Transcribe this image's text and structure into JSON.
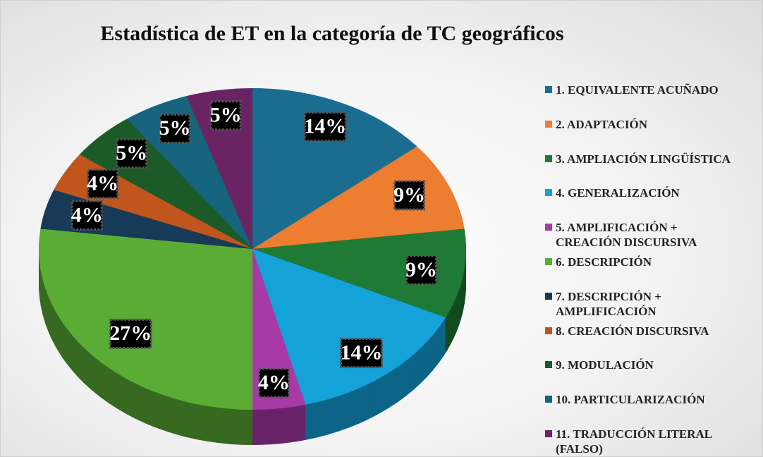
{
  "chart_data": {
    "type": "pie",
    "title": "Estadística de ET en la categoría de TC geográficos",
    "categories": [
      "1. EQUIVALENTE ACUÑADO",
      "2. ADAPTACIÓN",
      "3. AMPLIACIÓN LINGÜÍSTICA",
      "4. GENERALIZACIÓN",
      "5. AMPLIFICACIÓN + CREACIÓN DISCURSIVA",
      "6. DESCRIPCIÓN",
      "7. DESCRIPCIÓN + AMPLIFICACIÓN",
      "8. CREACIÓN DISCURSIVA",
      "9. MODULACIÓN",
      "10. PARTICULARIZACIÓN",
      "11. TRADUCCIÓN LITERAL (FALSO)"
    ],
    "values": [
      14,
      9,
      9,
      14,
      4,
      27,
      4,
      4,
      5,
      5,
      5
    ],
    "value_labels": [
      "14%",
      "9%",
      "9%",
      "14%",
      "4%",
      "27%",
      "4%",
      "4%",
      "5%",
      "5%",
      "5%"
    ],
    "colors": [
      "#1b6d8f",
      "#ed7d31",
      "#1f7a35",
      "#14a2d9",
      "#a83aa8",
      "#5aac35",
      "#173a57",
      "#c0561e",
      "#1c5a27",
      "#17647e",
      "#6b2463"
    ]
  }
}
